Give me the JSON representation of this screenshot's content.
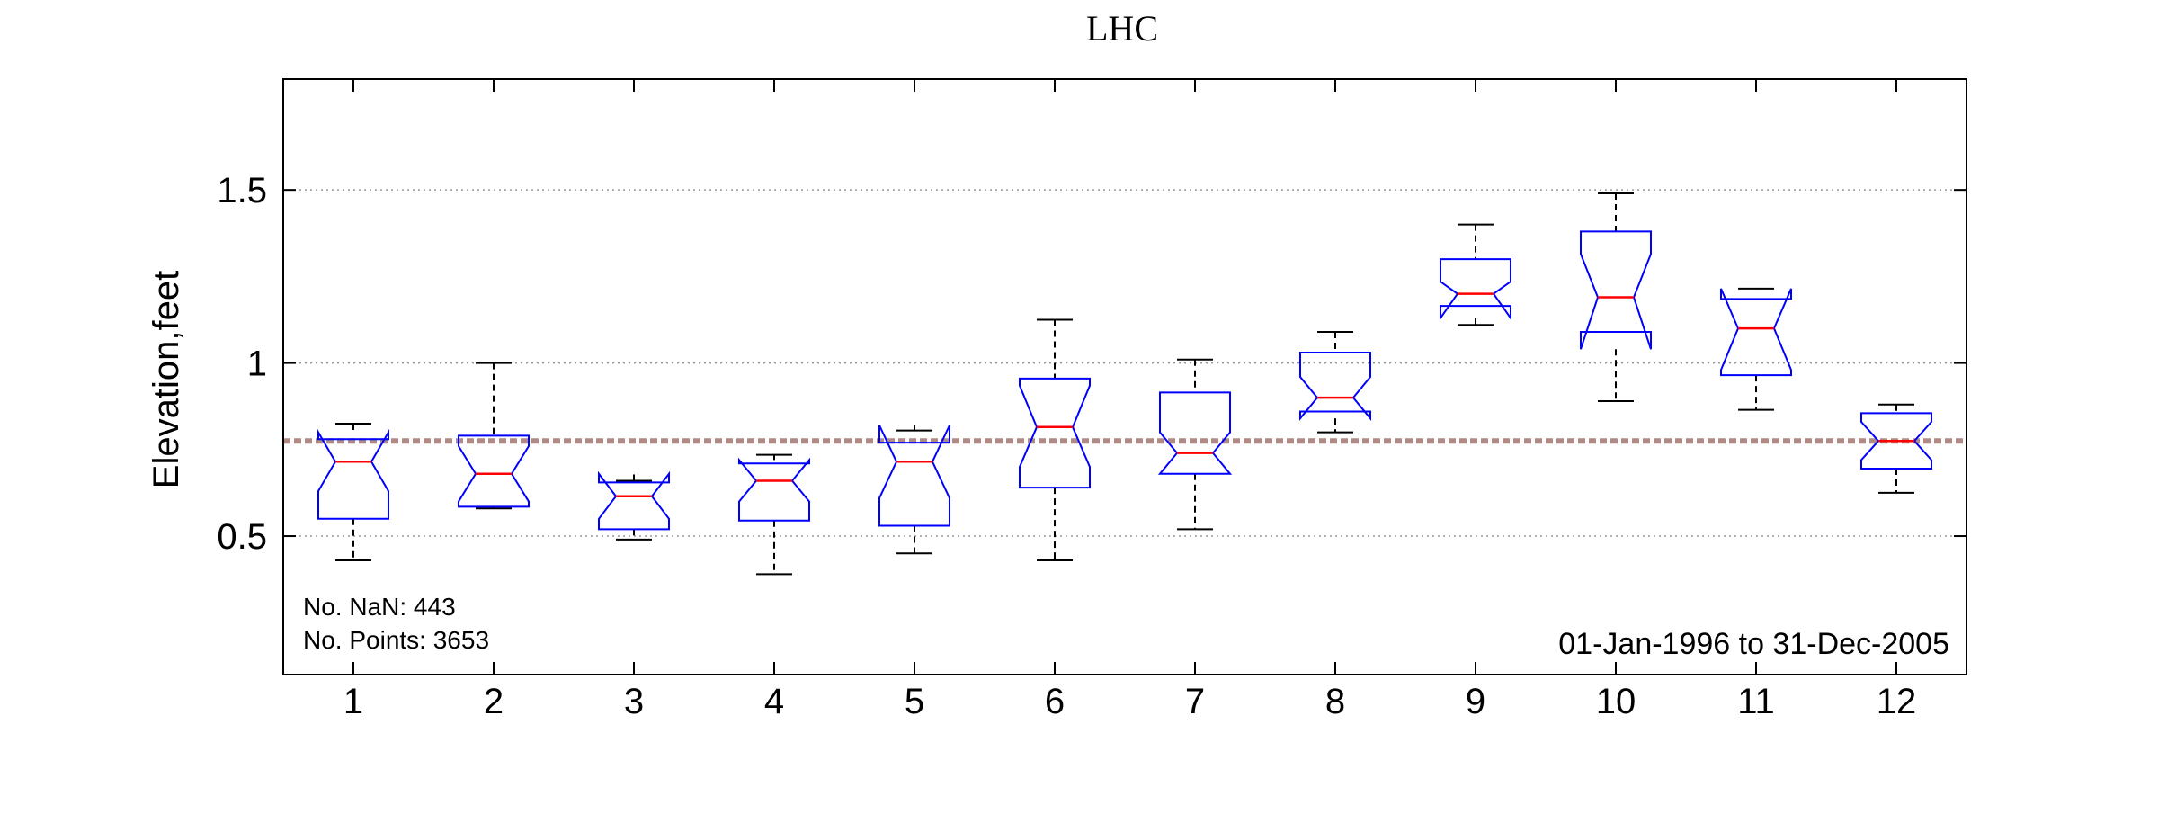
{
  "chart_data": {
    "type": "box",
    "title": "LHC",
    "xlabel": "",
    "ylabel": "Elevation,feet",
    "ylim": [
      0.1,
      1.82
    ],
    "yticks": [
      0.5,
      1,
      1.5
    ],
    "ytick_labels": [
      "0.5",
      "1",
      "1.5"
    ],
    "grid": "horizontal-dotted",
    "reference_line": 0.775,
    "colors": {
      "box": "#0000ff",
      "median": "#ff0000",
      "whisker": "#000000",
      "reference": "#b08a84",
      "grid": "#999999"
    },
    "categories": [
      "1",
      "2",
      "3",
      "4",
      "5",
      "6",
      "7",
      "8",
      "9",
      "10",
      "11",
      "12"
    ],
    "boxes": [
      {
        "category": "1",
        "whisker_low": 0.43,
        "q1": 0.55,
        "median": 0.715,
        "q3": 0.78,
        "whisker_high": 0.825,
        "notch_low": 0.63,
        "notch_high": 0.8
      },
      {
        "category": "2",
        "whisker_low": 0.58,
        "q1": 0.585,
        "median": 0.68,
        "q3": 0.79,
        "whisker_high": 1.0,
        "notch_low": 0.6,
        "notch_high": 0.76
      },
      {
        "category": "3",
        "whisker_low": 0.49,
        "q1": 0.52,
        "median": 0.615,
        "q3": 0.655,
        "whisker_high": 0.66,
        "notch_low": 0.55,
        "notch_high": 0.68
      },
      {
        "category": "4",
        "whisker_low": 0.39,
        "q1": 0.545,
        "median": 0.66,
        "q3": 0.71,
        "whisker_high": 0.735,
        "notch_low": 0.6,
        "notch_high": 0.72
      },
      {
        "category": "5",
        "whisker_low": 0.45,
        "q1": 0.53,
        "median": 0.715,
        "q3": 0.77,
        "whisker_high": 0.805,
        "notch_low": 0.61,
        "notch_high": 0.82
      },
      {
        "category": "6",
        "whisker_low": 0.43,
        "q1": 0.64,
        "median": 0.815,
        "q3": 0.955,
        "whisker_high": 1.125,
        "notch_low": 0.7,
        "notch_high": 0.935
      },
      {
        "category": "7",
        "whisker_low": 0.52,
        "q1": 0.68,
        "median": 0.74,
        "q3": 0.915,
        "whisker_high": 1.01,
        "notch_low": 0.68,
        "notch_high": 0.8
      },
      {
        "category": "8",
        "whisker_low": 0.8,
        "q1": 0.86,
        "median": 0.9,
        "q3": 1.03,
        "whisker_high": 1.09,
        "notch_low": 0.84,
        "notch_high": 0.96
      },
      {
        "category": "9",
        "whisker_low": 1.11,
        "q1": 1.165,
        "median": 1.2,
        "q3": 1.3,
        "whisker_high": 1.4,
        "notch_low": 1.13,
        "notch_high": 1.235
      },
      {
        "category": "10",
        "whisker_low": 0.89,
        "q1": 1.09,
        "median": 1.19,
        "q3": 1.38,
        "whisker_high": 1.49,
        "notch_low": 1.04,
        "notch_high": 1.315
      },
      {
        "category": "11",
        "whisker_low": 0.865,
        "q1": 0.965,
        "median": 1.1,
        "q3": 1.185,
        "whisker_high": 1.215,
        "notch_low": 0.98,
        "notch_high": 1.215
      },
      {
        "category": "12",
        "whisker_low": 0.625,
        "q1": 0.695,
        "median": 0.775,
        "q3": 0.855,
        "whisker_high": 0.88,
        "notch_low": 0.72,
        "notch_high": 0.83
      }
    ],
    "annotations": {
      "nan_count": "No. NaN: 443",
      "point_count": "No. Points: 3653",
      "date_range": "01-Jan-1996 to 31-Dec-2005"
    }
  }
}
